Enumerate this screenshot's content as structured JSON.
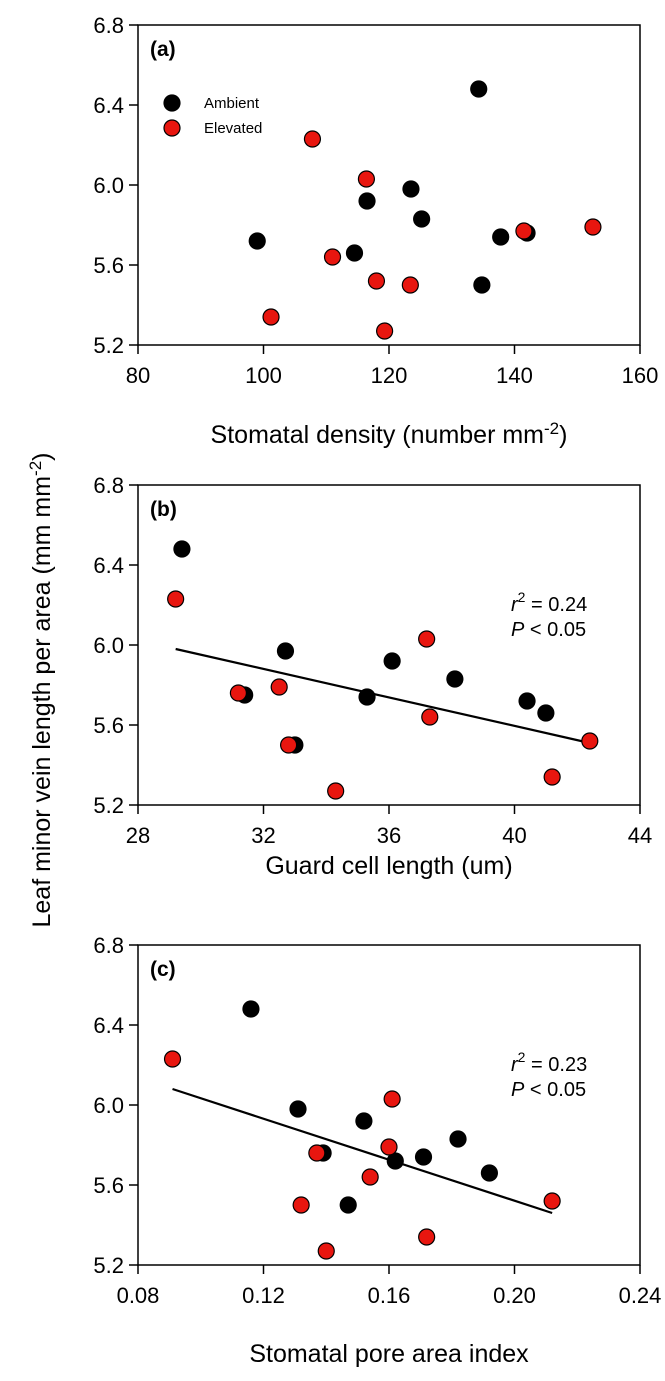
{
  "figure": {
    "ylabel_main": "Leaf minor vein length per area (mm mm",
    "ylabel_sup": "-2",
    "ylabel_close": ")"
  },
  "colors": {
    "ambient": "#000000",
    "elevated": "#e8160f",
    "line": "#000000"
  },
  "chart_data": [
    {
      "type": "scatter",
      "panel_label": "(a)",
      "xlabel": "Stomatal density (number mm",
      "xlabel_sup": "-2",
      "xlabel_close": ")",
      "xlim": [
        80,
        160
      ],
      "xticks": [
        "80",
        "100",
        "120",
        "140",
        "160"
      ],
      "ylim": [
        5.2,
        6.8
      ],
      "yticks": [
        "5.2",
        "5.6",
        "6.0",
        "6.4",
        "6.8"
      ],
      "legend": {
        "position": "top-left",
        "entries": [
          "Ambient",
          "Elevated"
        ]
      },
      "series": [
        {
          "name": "Ambient",
          "color": "#000000",
          "points": [
            [
              99.0,
              5.72
            ],
            [
              114.5,
              5.66
            ],
            [
              116.5,
              5.92
            ],
            [
              123.5,
              5.98
            ],
            [
              125.2,
              5.83
            ],
            [
              134.3,
              6.48
            ],
            [
              134.8,
              5.5
            ],
            [
              137.8,
              5.74
            ],
            [
              142.0,
              5.76
            ]
          ]
        },
        {
          "name": "Elevated",
          "color": "#e8160f",
          "points": [
            [
              101.2,
              5.34
            ],
            [
              107.8,
              6.23
            ],
            [
              111.0,
              5.64
            ],
            [
              116.4,
              6.03
            ],
            [
              118.0,
              5.52
            ],
            [
              119.3,
              5.27
            ],
            [
              123.4,
              5.5
            ],
            [
              141.5,
              5.77
            ],
            [
              152.5,
              5.79
            ]
          ]
        }
      ]
    },
    {
      "type": "scatter",
      "panel_label": "(b)",
      "xlabel": "Guard cell length (um)",
      "xlabel_sup": "",
      "xlabel_close": "",
      "xlim": [
        28,
        44
      ],
      "xticks": [
        "28",
        "32",
        "36",
        "40",
        "44"
      ],
      "ylim": [
        5.2,
        6.8
      ],
      "yticks": [
        "5.2",
        "5.6",
        "6.0",
        "6.4",
        "6.8"
      ],
      "annotation": {
        "r2_text": "= 0.24",
        "p_text": "< 0.05"
      },
      "fit_line": {
        "x": [
          29.2,
          42.4
        ],
        "y": [
          5.98,
          5.51
        ]
      },
      "series": [
        {
          "name": "Ambient",
          "color": "#000000",
          "points": [
            [
              29.4,
              6.48
            ],
            [
              31.4,
              5.75
            ],
            [
              32.7,
              5.97
            ],
            [
              33.0,
              5.5
            ],
            [
              35.3,
              5.74
            ],
            [
              36.1,
              5.92
            ],
            [
              38.1,
              5.83
            ],
            [
              40.4,
              5.72
            ],
            [
              41.0,
              5.66
            ]
          ]
        },
        {
          "name": "Elevated",
          "color": "#e8160f",
          "points": [
            [
              29.2,
              6.23
            ],
            [
              31.2,
              5.76
            ],
            [
              32.5,
              5.79
            ],
            [
              32.8,
              5.5
            ],
            [
              34.3,
              5.27
            ],
            [
              37.2,
              6.03
            ],
            [
              37.3,
              5.64
            ],
            [
              41.2,
              5.34
            ],
            [
              42.4,
              5.52
            ]
          ]
        }
      ]
    },
    {
      "type": "scatter",
      "panel_label": "(c)",
      "xlabel": "Stomatal pore area index",
      "xlabel_sup": "",
      "xlabel_close": "",
      "xlim": [
        0.08,
        0.24
      ],
      "xticks": [
        "0.08",
        "0.12",
        "0.16",
        "0.20",
        "0.24"
      ],
      "ylim": [
        5.2,
        6.8
      ],
      "yticks": [
        "5.2",
        "5.6",
        "6.0",
        "6.4",
        "6.8"
      ],
      "annotation": {
        "r2_text": "= 0.23",
        "p_text": "< 0.05"
      },
      "fit_line": {
        "x": [
          0.091,
          0.212
        ],
        "y": [
          6.08,
          5.46
        ]
      },
      "series": [
        {
          "name": "Ambient",
          "color": "#000000",
          "points": [
            [
              0.116,
              6.48
            ],
            [
              0.131,
              5.98
            ],
            [
              0.139,
              5.76
            ],
            [
              0.147,
              5.5
            ],
            [
              0.152,
              5.92
            ],
            [
              0.162,
              5.72
            ],
            [
              0.171,
              5.74
            ],
            [
              0.182,
              5.83
            ],
            [
              0.192,
              5.66
            ]
          ]
        },
        {
          "name": "Elevated",
          "color": "#e8160f",
          "points": [
            [
              0.091,
              6.23
            ],
            [
              0.132,
              5.5
            ],
            [
              0.137,
              5.76
            ],
            [
              0.14,
              5.27
            ],
            [
              0.154,
              5.64
            ],
            [
              0.16,
              5.79
            ],
            [
              0.161,
              6.03
            ],
            [
              0.172,
              5.34
            ],
            [
              0.212,
              5.52
            ]
          ]
        }
      ]
    }
  ]
}
